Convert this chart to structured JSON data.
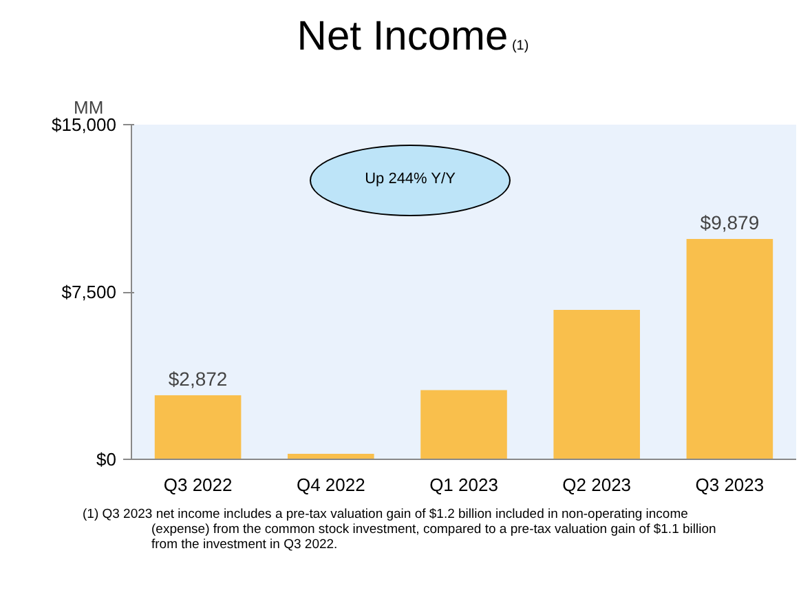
{
  "chart_data": {
    "type": "bar",
    "title": "Net Income",
    "ylabel": "MM",
    "categories": [
      "Q3 2022",
      "Q4 2022",
      "Q1 2023",
      "Q2 2023",
      "Q3 2023"
    ],
    "values": [
      2872,
      250,
      3100,
      6700,
      9879
    ],
    "value_labels": [
      "$2,872",
      null,
      null,
      null,
      "$9,879"
    ],
    "color": "#f9bf4c",
    "ylim": [
      0,
      15000
    ],
    "yticks": [
      {
        "value": 0,
        "label": "$0"
      },
      {
        "value": 7500,
        "label": "$7,500"
      },
      {
        "value": 15000,
        "label": "$15,000"
      }
    ],
    "grid": false,
    "annotations": [
      "(1)",
      "Up 244% Y/Y",
      "(1)     Q3 2023 net income includes a pre-tax valuation gain of $1.2 billion included in non-operating income (expense) from the common stock investment, compared to a pre-tax valuation gain of $1.1 billion from the investment in Q3 2022."
    ]
  }
}
